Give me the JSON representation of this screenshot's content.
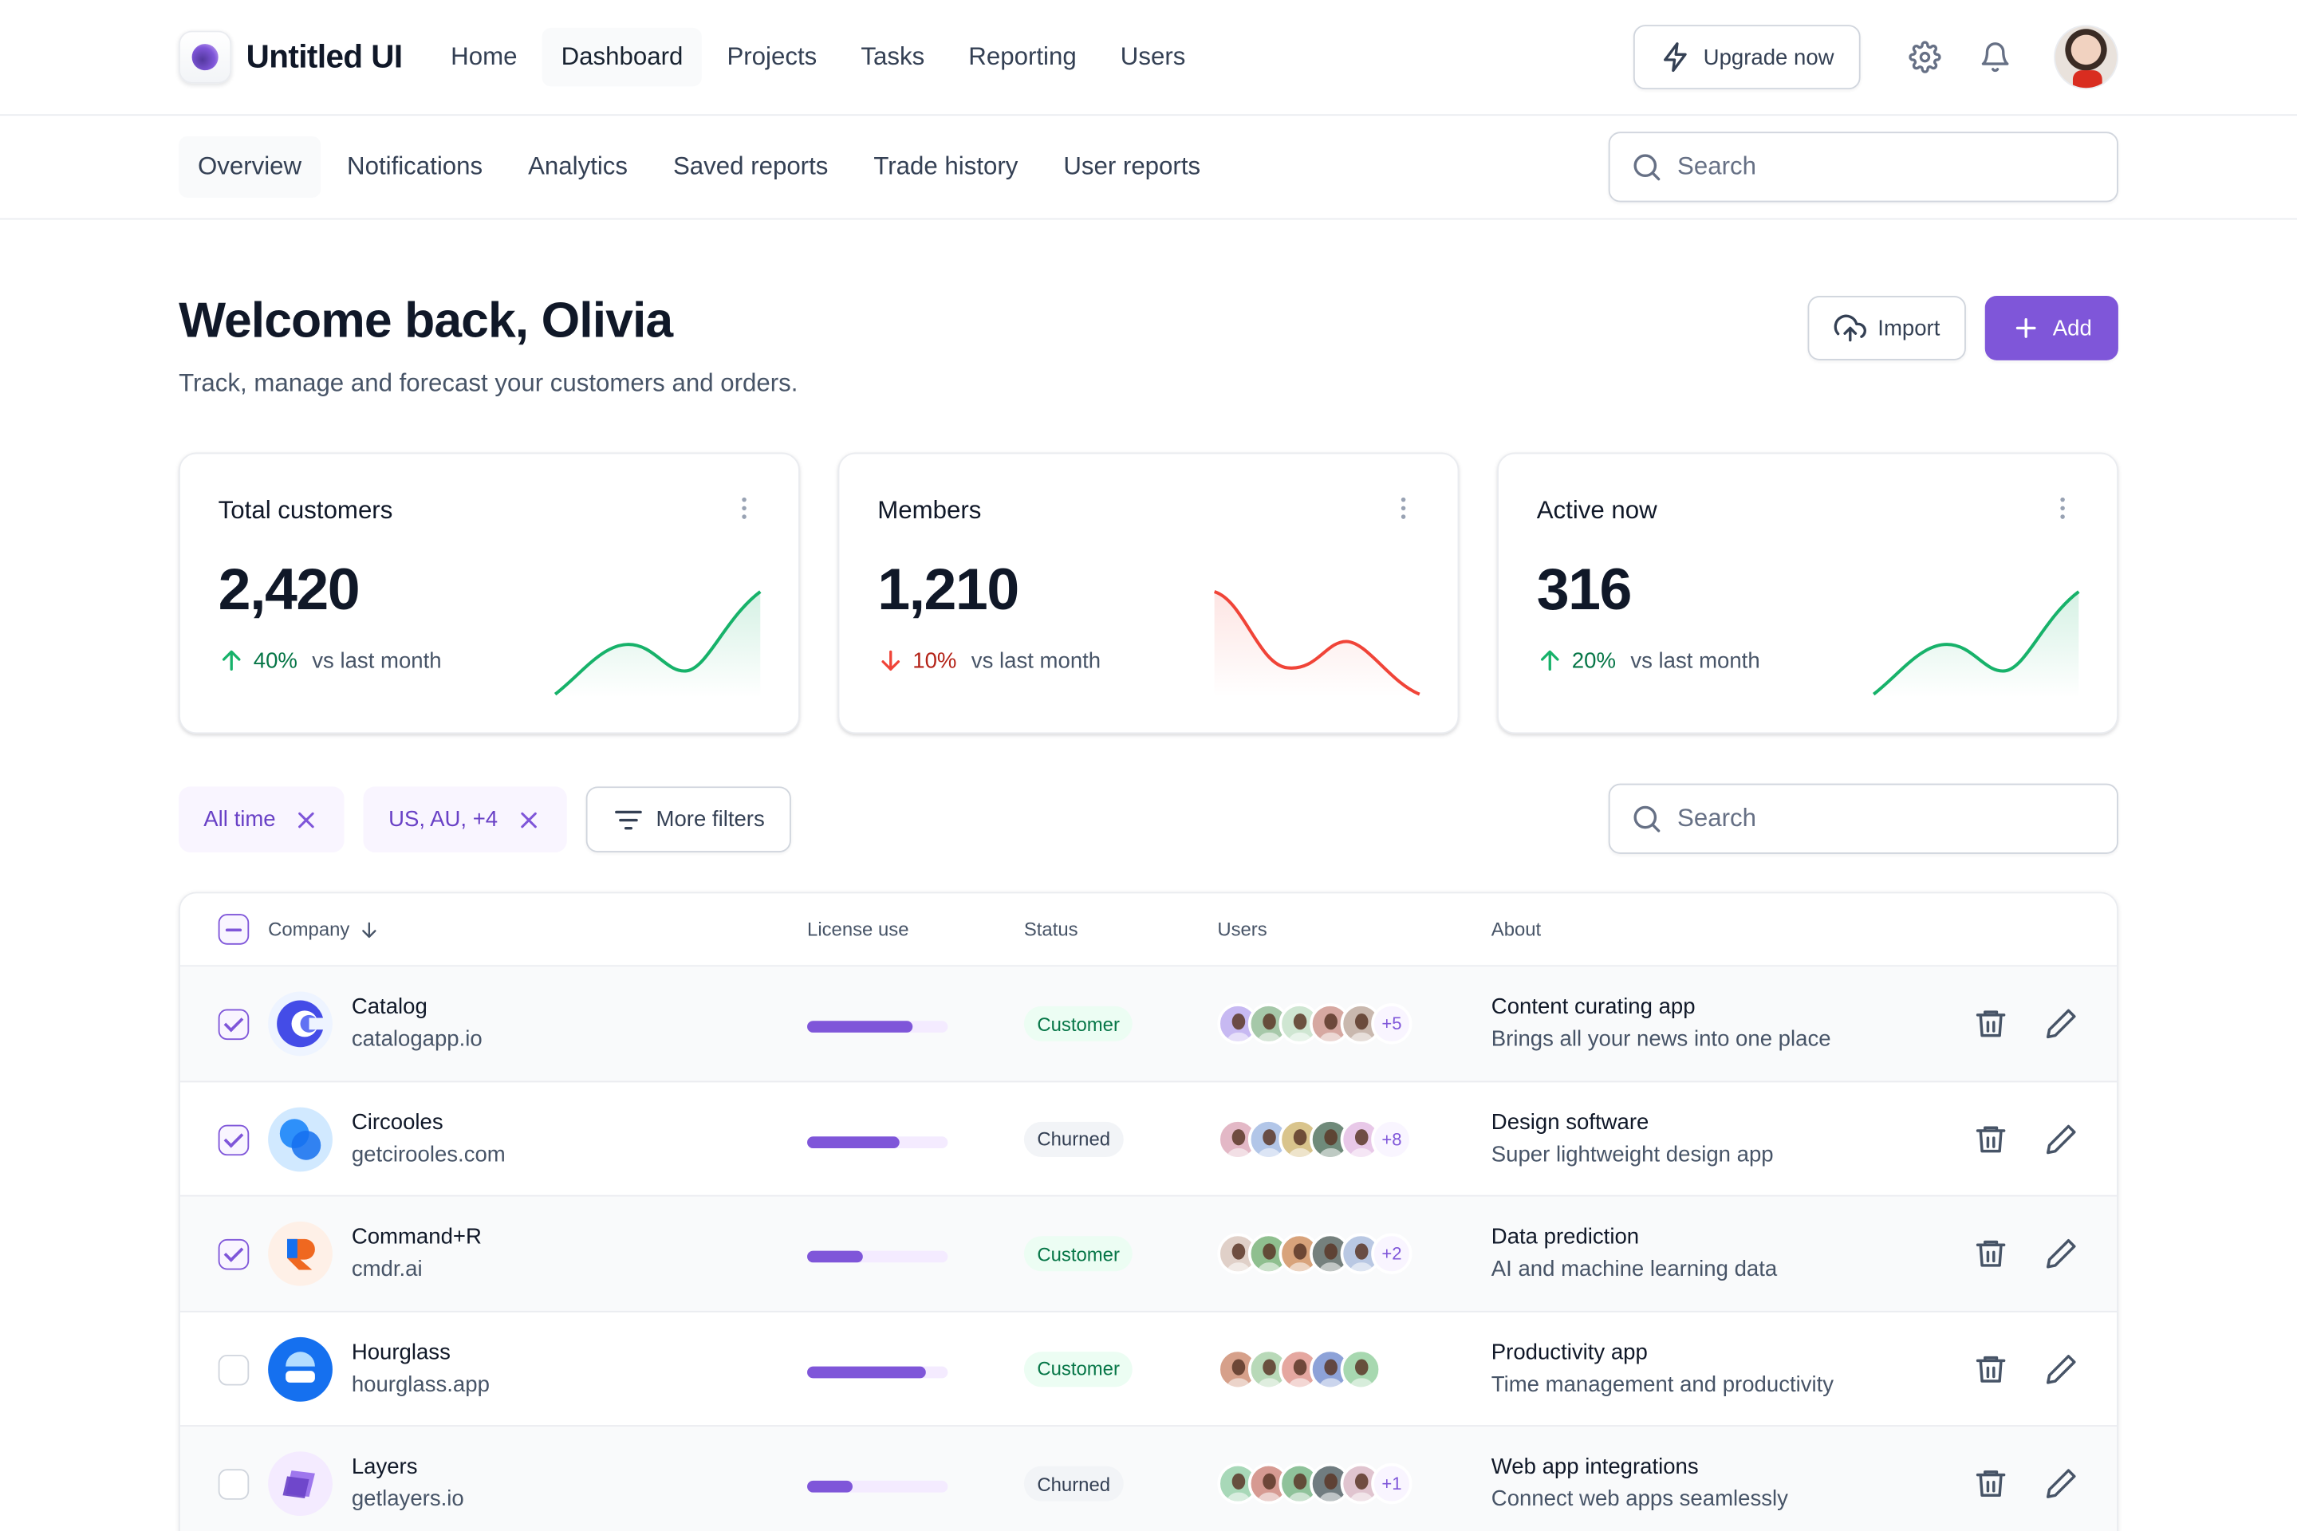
{
  "app": {
    "name": "Untitled UI"
  },
  "nav": {
    "items": [
      "Home",
      "Dashboard",
      "Projects",
      "Tasks",
      "Reporting",
      "Users"
    ],
    "active": 1,
    "upgrade_label": "Upgrade now"
  },
  "subnav": {
    "items": [
      "Overview",
      "Notifications",
      "Analytics",
      "Saved reports",
      "Trade history",
      "User reports"
    ],
    "active": 0,
    "search_placeholder": "Search"
  },
  "header": {
    "title": "Welcome back, Olivia",
    "subtitle": "Track, manage and forecast your customers and orders.",
    "import_label": "Import",
    "add_label": "Add"
  },
  "cards": [
    {
      "title": "Total customers",
      "value": "2,420",
      "change": "40%",
      "direction": "up",
      "label": "vs last month",
      "color": "#17b26a"
    },
    {
      "title": "Members",
      "value": "1,210",
      "change": "10%",
      "direction": "down",
      "label": "vs last month",
      "color": "#f04438"
    },
    {
      "title": "Active now",
      "value": "316",
      "change": "20%",
      "direction": "up",
      "label": "vs last month",
      "color": "#17b26a"
    }
  ],
  "filters": {
    "chips": [
      "All time",
      "US, AU, +4"
    ],
    "more_label": "More filters",
    "search_placeholder": "Search"
  },
  "table": {
    "headers": {
      "company": "Company",
      "license": "License use",
      "status": "Status",
      "users": "Users",
      "about": "About"
    },
    "rows": [
      {
        "name": "Catalog",
        "url": "catalogapp.io",
        "license": 0.75,
        "status": "Customer",
        "more": "+5",
        "about_title": "Content curating app",
        "about_desc": "Brings all your news into one place",
        "checked": true,
        "logo": "catalog"
      },
      {
        "name": "Circooles",
        "url": "getcirooles.com",
        "license": 0.66,
        "status": "Churned",
        "more": "+8",
        "about_title": "Design software",
        "about_desc": "Super lightweight design app",
        "checked": true,
        "logo": "circooles"
      },
      {
        "name": "Command+R",
        "url": "cmdr.ai",
        "license": 0.4,
        "status": "Customer",
        "more": "+2",
        "about_title": "Data prediction",
        "about_desc": "AI and machine learning data",
        "checked": true,
        "logo": "commandr"
      },
      {
        "name": "Hourglass",
        "url": "hourglass.app",
        "license": 0.84,
        "status": "Customer",
        "more": "",
        "about_title": "Productivity app",
        "about_desc": "Time management and productivity",
        "checked": false,
        "logo": "hourglass"
      },
      {
        "name": "Layers",
        "url": "getlayers.io",
        "license": 0.32,
        "status": "Churned",
        "more": "+1",
        "about_title": "Web app integrations",
        "about_desc": "Connect web apps seamlessly",
        "checked": false,
        "logo": "layers"
      }
    ]
  },
  "colors": {
    "accent": "#7f56d9",
    "positive": "#17b26a",
    "negative": "#f04438"
  }
}
